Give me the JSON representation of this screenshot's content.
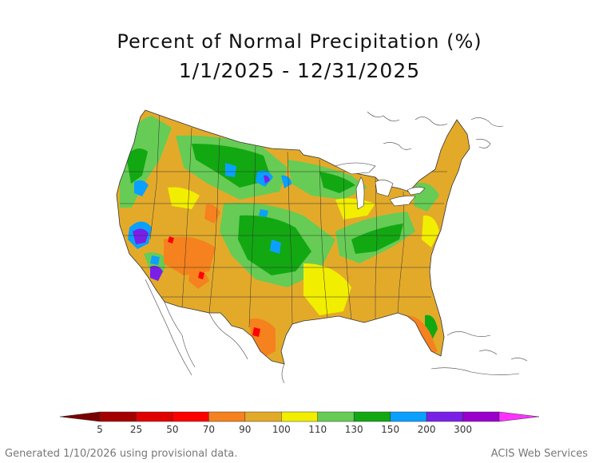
{
  "title": "Percent of Normal Precipitation (%)",
  "subtitle": "1/1/2025 - 12/31/2025",
  "legend": {
    "ticks": [
      "5",
      "25",
      "50",
      "70",
      "90",
      "100",
      "110",
      "130",
      "150",
      "200",
      "300"
    ],
    "colors": [
      "#a50000",
      "#e00000",
      "#ff0000",
      "#f5821e",
      "#e3aa2a",
      "#f2ee00",
      "#66cc55",
      "#12a812",
      "#0aa0ff",
      "#7a1fe8",
      "#9900cc"
    ],
    "below_color": "#7a0000",
    "above_color": "#ff33ff"
  },
  "footer": {
    "generated": "Generated 1/10/2026 using provisional data.",
    "credit": "ACIS Web Services"
  },
  "map": {
    "background_class": "#e3aa2a"
  }
}
